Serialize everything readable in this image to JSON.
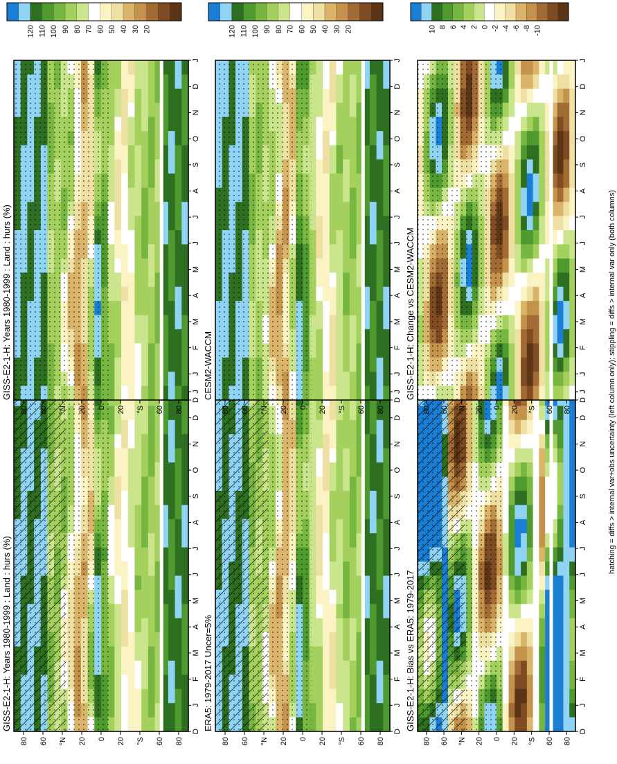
{
  "figure_caption": "hatching = diffs > internal var+obs uncertainty (left column only); stippling = diffs > internal var only (both columns)",
  "chart_data": [
    {
      "type": "heatmap",
      "title": "GISS-E2-1-H: Years 1980-1999 : Land : hurs (%)",
      "x_categories": [
        "D",
        "J",
        "F",
        "M",
        "A",
        "M",
        "J",
        "J",
        "A",
        "S",
        "O",
        "N",
        "D",
        "J"
      ],
      "y_ticks": [
        "80",
        "60",
        "°N",
        "20",
        "0",
        "20",
        "°S",
        "60",
        "80"
      ],
      "ylim": [
        -90,
        90
      ],
      "colorbar": {
        "labels": [
          "120",
          "110",
          "100",
          "90",
          "80",
          "70",
          "60",
          "50",
          "40",
          "30",
          "20"
        ]
      },
      "overlay": "hatching+stippling"
    },
    {
      "type": "heatmap",
      "title": "GISS-E2-1-H: Years 1980-1999 : Land : hurs (%)",
      "x_categories": [
        "D",
        "J",
        "F",
        "M",
        "A",
        "M",
        "J",
        "J",
        "A",
        "S",
        "O",
        "N",
        "D",
        "J"
      ],
      "y_ticks": [
        "80",
        "60",
        "°N",
        "20",
        "0",
        "20",
        "°S",
        "60",
        "80"
      ],
      "ylim": [
        -90,
        90
      ],
      "colorbar": {
        "labels": [
          "120",
          "110",
          "100",
          "90",
          "80",
          "70",
          "60",
          "50",
          "40",
          "30",
          "20"
        ]
      },
      "overlay": "stippling"
    },
    {
      "type": "heatmap",
      "title": "ERA5: 1979-2017 Uncer=5%",
      "x_categories": [
        "D",
        "J",
        "F",
        "M",
        "A",
        "M",
        "J",
        "J",
        "A",
        "S",
        "O",
        "N",
        "D",
        "J"
      ],
      "y_ticks": [
        "80",
        "60",
        "°N",
        "20",
        "0",
        "20",
        "°S",
        "60",
        "80"
      ],
      "ylim": [
        -90,
        90
      ],
      "colorbar": {
        "labels": [
          "120",
          "110",
          "100",
          "90",
          "80",
          "70",
          "60",
          "50",
          "40",
          "30",
          "20"
        ]
      },
      "overlay": "hatching+stippling"
    },
    {
      "type": "heatmap",
      "title": "CESM2-WACCM",
      "x_categories": [
        "D",
        "J",
        "F",
        "M",
        "A",
        "M",
        "J",
        "J",
        "A",
        "S",
        "O",
        "N",
        "D",
        "J"
      ],
      "y_ticks": [
        "80",
        "60",
        "°N",
        "20",
        "0",
        "20",
        "°S",
        "60",
        "80"
      ],
      "ylim": [
        -90,
        90
      ],
      "colorbar": {
        "labels": [
          "120",
          "110",
          "100",
          "90",
          "80",
          "70",
          "60",
          "50",
          "40",
          "30",
          "20"
        ]
      },
      "overlay": "stippling"
    },
    {
      "type": "heatmap",
      "title": "GISS-E2-1-H: Bias vs ERA5: 1979-2017",
      "x_categories": [
        "D",
        "J",
        "F",
        "M",
        "A",
        "M",
        "J",
        "J",
        "A",
        "S",
        "O",
        "N",
        "D",
        "J"
      ],
      "y_ticks": [
        "80",
        "60",
        "°N",
        "20",
        "0",
        "20",
        "°S",
        "60",
        "80"
      ],
      "ylim": [
        -90,
        90
      ],
      "colorbar": {
        "labels": [
          "10",
          "8",
          "6",
          "4",
          "2",
          "0",
          "-2",
          "-4",
          "-6",
          "-8",
          "-10"
        ]
      },
      "overlay": "hatching+stippling"
    },
    {
      "type": "heatmap",
      "title": "GISS-E2-1-H: Change vs CESM2-WACCM",
      "x_categories": [
        "D",
        "J",
        "F",
        "M",
        "A",
        "M",
        "J",
        "J",
        "A",
        "S",
        "O",
        "N",
        "D",
        "J"
      ],
      "y_ticks": [
        "80",
        "60",
        "°N",
        "20",
        "0",
        "20",
        "°S",
        "60",
        "80"
      ],
      "ylim": [
        -90,
        90
      ],
      "colorbar": {
        "labels": [
          "10",
          "8",
          "6",
          "4",
          "2",
          "0",
          "-2",
          "-4",
          "-6",
          "-8",
          "-10"
        ]
      },
      "overlay": "stippling"
    }
  ],
  "colors": {
    "abs_palette": [
      "#1a7fd4",
      "#8fd3f5",
      "#2f6f22",
      "#4f9a2e",
      "#78b642",
      "#a4d05e",
      "#cbe58d",
      "#ffffff",
      "#fbf3c4",
      "#eedfa3",
      "#d9b46a",
      "#c4924a",
      "#a26a34",
      "#7e4b22",
      "#5c3416"
    ],
    "diff_palette": [
      "#1a7fd4",
      "#8fd3f5",
      "#2f6f22",
      "#4f9a2e",
      "#78b642",
      "#a4d05e",
      "#cbe58d",
      "#ffffff",
      "#fbf3c4",
      "#eedfa3",
      "#d9b46a",
      "#c4924a",
      "#a26a34",
      "#7e4b22",
      "#5c3416"
    ]
  }
}
